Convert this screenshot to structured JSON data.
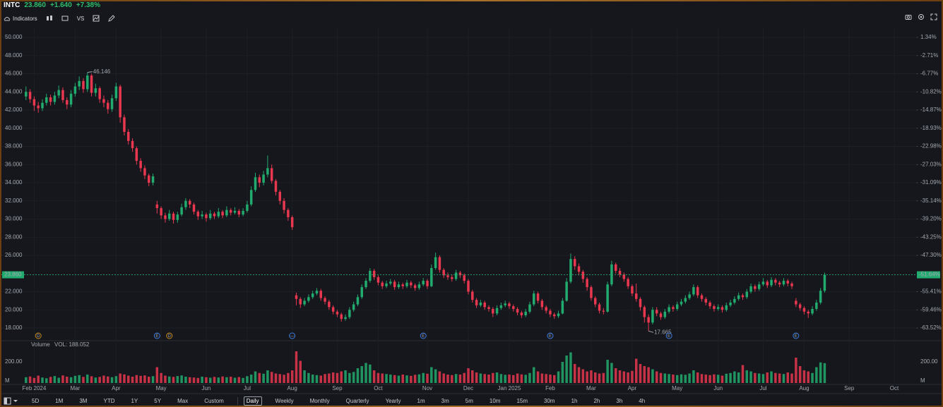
{
  "header": {
    "symbol": "INTC",
    "price": "23.860",
    "change": "+1.640",
    "change_pct": "+7.38%"
  },
  "toolbar": {
    "indicators": "Indicators",
    "compare": "VS"
  },
  "ranges": [
    "5D",
    "1M",
    "3M",
    "YTD",
    "1Y",
    "5Y",
    "Max",
    "Custom"
  ],
  "intervals": [
    "Daily",
    "Weekly",
    "Monthly",
    "Quarterly",
    "Yearly",
    "1m",
    "3m",
    "5m",
    "10m",
    "15m",
    "30m",
    "1h",
    "2h",
    "3h",
    "4h"
  ],
  "active_interval": 0,
  "chart_data": {
    "type": "candlestick",
    "up_color": "#22ab6e",
    "down_color": "#e8374f",
    "grid": true,
    "open": [
      43.5,
      44.0,
      43.2,
      42.5,
      42.2,
      42.8,
      43.4,
      42.9,
      43.6,
      44.2,
      43.1,
      42.6,
      43.8,
      44.6,
      45.2,
      44.3,
      45.8,
      43.9,
      44.4,
      43.2,
      42.8,
      42.1,
      43.3,
      44.6,
      41.2,
      39.6,
      38.6,
      37.8,
      36.4,
      35.6,
      34.8,
      34.0,
      31.6,
      31.2,
      30.4,
      30.0,
      30.6,
      29.9,
      30.5,
      31.3,
      32.0,
      31.6,
      30.8,
      30.3,
      30.5,
      30.1,
      30.6,
      30.3,
      30.8,
      30.4,
      31.0,
      30.7,
      30.9,
      30.5,
      30.9,
      31.6,
      33.2,
      34.6,
      34.0,
      34.9,
      35.6,
      34.2,
      33.0,
      32.0,
      31.0,
      30.2,
      21.6,
      21.2,
      20.6,
      21.0,
      21.4,
      21.8,
      22.1,
      21.3,
      20.9,
      20.3,
      19.8,
      19.5,
      19.0,
      19.2,
      20.0,
      20.6,
      21.4,
      22.5,
      23.2,
      24.3,
      23.6,
      23.0,
      22.6,
      22.9,
      23.1,
      22.5,
      22.8,
      22.6,
      23.0,
      22.7,
      22.4,
      22.8,
      23.2,
      22.6,
      24.6,
      25.8,
      24.4,
      23.8,
      23.6,
      23.4,
      24.1,
      23.8,
      23.2,
      22.0,
      21.1,
      20.5,
      20.8,
      20.3,
      20.1,
      19.6,
      20.2,
      20.5,
      20.7,
      20.4,
      20.1,
      19.7,
      19.4,
      19.8,
      20.6,
      21.8,
      21.0,
      20.3,
      19.9,
      19.5,
      19.3,
      19.6,
      21.0,
      23.1,
      25.6,
      24.8,
      24.2,
      23.4,
      22.5,
      21.3,
      20.6,
      19.9,
      19.8,
      22.8,
      25.0,
      24.3,
      23.9,
      23.4,
      22.6,
      21.8,
      21.2,
      20.3,
      19.2,
      18.6,
      20.0,
      19.6,
      19.2,
      19.8,
      20.3,
      20.1,
      20.6,
      20.9,
      21.3,
      21.7,
      22.5,
      21.6,
      21.2,
      20.8,
      20.4,
      20.1,
      20.3,
      20.0,
      20.5,
      20.8,
      21.2,
      21.6,
      21.4,
      22.0,
      22.6,
      22.3,
      22.8,
      23.1,
      22.7,
      23.3,
      23.0,
      22.8,
      23.2,
      22.9,
      21.0,
      20.6,
      20.2,
      19.8,
      19.6,
      20.1,
      20.8,
      22.1
    ],
    "high": [
      44.6,
      44.3,
      43.5,
      42.9,
      43.2,
      43.8,
      43.7,
      44.0,
      44.7,
      44.5,
      43.4,
      44.2,
      45.0,
      45.7,
      45.5,
      46.146,
      46.0,
      44.9,
      44.6,
      43.6,
      43.1,
      43.7,
      45.0,
      44.8,
      41.5,
      39.9,
      38.9,
      38.0,
      36.7,
      35.9,
      35.0,
      35.0,
      32.0,
      31.4,
      30.7,
      31.0,
      30.8,
      30.8,
      31.7,
      32.3,
      32.2,
      31.8,
      31.0,
      30.9,
      30.7,
      31.0,
      30.8,
      31.2,
      31.0,
      31.4,
      31.2,
      31.3,
      31.1,
      31.2,
      32.0,
      33.6,
      35.1,
      34.9,
      35.3,
      37.0,
      36.0,
      34.4,
      33.2,
      32.3,
      31.2,
      30.4,
      21.9,
      21.4,
      21.3,
      21.7,
      22.1,
      22.4,
      22.3,
      21.5,
      21.1,
      20.5,
      20.0,
      19.7,
      19.5,
      20.3,
      20.9,
      21.7,
      22.8,
      23.5,
      24.6,
      24.5,
      23.8,
      23.2,
      23.2,
      23.4,
      23.3,
      23.1,
      23.0,
      23.3,
      23.2,
      22.9,
      23.1,
      23.5,
      23.4,
      25.0,
      26.3,
      26.0,
      24.6,
      24.1,
      23.9,
      24.4,
      24.3,
      24.0,
      23.4,
      22.2,
      21.3,
      21.1,
      21.0,
      20.5,
      20.3,
      20.5,
      20.8,
      21.0,
      20.9,
      20.6,
      20.3,
      19.9,
      20.1,
      20.9,
      22.1,
      22.0,
      21.2,
      20.5,
      20.1,
      19.7,
      19.9,
      21.3,
      23.5,
      26.2,
      25.9,
      25.1,
      24.4,
      23.6,
      22.7,
      21.5,
      20.8,
      20.2,
      23.1,
      25.4,
      25.2,
      24.6,
      24.1,
      23.6,
      22.8,
      22.9,
      21.4,
      20.5,
      19.5,
      20.3,
      20.3,
      19.8,
      20.1,
      20.6,
      20.5,
      20.9,
      21.2,
      21.6,
      22.0,
      22.8,
      22.7,
      21.8,
      21.4,
      21.0,
      20.6,
      20.6,
      20.5,
      20.8,
      21.1,
      21.5,
      21.9,
      21.8,
      22.3,
      22.9,
      22.8,
      23.1,
      23.5,
      23.3,
      23.6,
      23.5,
      23.2,
      23.5,
      23.4,
      23.1,
      21.3,
      20.8,
      20.4,
      20.0,
      20.4,
      21.1,
      22.4,
      24.1
    ],
    "low": [
      43.1,
      42.8,
      41.9,
      41.7,
      41.9,
      42.5,
      42.5,
      42.6,
      43.3,
      42.8,
      42.1,
      42.3,
      43.5,
      44.2,
      43.9,
      44.0,
      43.5,
      43.5,
      42.8,
      42.3,
      41.6,
      41.8,
      43.0,
      40.6,
      39.2,
      38.2,
      37.4,
      36.0,
      35.2,
      34.4,
      33.6,
      33.7,
      30.6,
      30.0,
      29.6,
      29.8,
      29.5,
      29.6,
      30.3,
      31.0,
      31.2,
      30.5,
      29.9,
      30.0,
      29.7,
      29.9,
      30.0,
      30.1,
      30.1,
      30.2,
      30.4,
      30.5,
      30.2,
      30.3,
      30.7,
      31.4,
      33.0,
      33.5,
      33.7,
      34.6,
      33.9,
      32.6,
      31.6,
      30.6,
      29.8,
      28.8,
      20.5,
      20.2,
      20.4,
      20.8,
      21.2,
      21.6,
      21.0,
      20.6,
      20.0,
      19.5,
      19.2,
      18.7,
      18.8,
      19.0,
      19.8,
      20.4,
      21.2,
      22.3,
      23.0,
      23.3,
      22.7,
      22.3,
      22.4,
      22.7,
      22.2,
      22.3,
      22.3,
      22.4,
      22.4,
      22.1,
      22.2,
      22.6,
      22.3,
      22.5,
      24.4,
      24.1,
      23.5,
      23.3,
      23.1,
      23.2,
      23.5,
      22.9,
      21.7,
      20.8,
      20.2,
      20.3,
      20.0,
      19.8,
      19.2,
      19.4,
      20.0,
      20.3,
      20.1,
      19.8,
      19.4,
      19.1,
      19.2,
      19.6,
      20.4,
      20.7,
      20.0,
      19.6,
      19.2,
      19.0,
      19.1,
      19.5,
      20.9,
      22.9,
      24.4,
      23.8,
      23.0,
      22.1,
      21.0,
      20.3,
      19.6,
      19.5,
      19.7,
      22.6,
      24.0,
      23.6,
      23.1,
      22.3,
      21.5,
      20.9,
      19.9,
      18.6,
      17.665,
      18.4,
      19.3,
      18.9,
      19.0,
      19.6,
      19.8,
      19.9,
      20.4,
      20.7,
      21.1,
      21.5,
      21.3,
      20.9,
      20.5,
      20.1,
      19.8,
      19.9,
      19.7,
      19.8,
      20.3,
      20.6,
      21.0,
      21.1,
      21.2,
      21.8,
      22.0,
      22.1,
      22.6,
      22.4,
      22.5,
      22.7,
      22.5,
      22.6,
      22.6,
      22.3,
      20.3,
      19.9,
      19.5,
      19.1,
      19.4,
      19.9,
      20.6,
      21.9
    ],
    "close": [
      44.0,
      43.2,
      42.5,
      42.2,
      42.8,
      43.4,
      42.9,
      43.6,
      44.2,
      43.1,
      42.6,
      43.8,
      44.6,
      45.2,
      44.3,
      45.8,
      43.9,
      44.4,
      43.2,
      42.8,
      42.1,
      43.3,
      44.6,
      41.2,
      39.6,
      38.6,
      37.8,
      36.4,
      35.6,
      34.8,
      34.0,
      34.7,
      31.2,
      30.4,
      30.0,
      30.6,
      29.9,
      30.5,
      31.3,
      32.0,
      31.6,
      30.8,
      30.3,
      30.5,
      30.1,
      30.6,
      30.3,
      30.8,
      30.4,
      31.0,
      30.7,
      30.9,
      30.5,
      30.9,
      31.6,
      33.2,
      34.6,
      34.0,
      34.9,
      35.6,
      34.2,
      33.0,
      32.0,
      31.0,
      30.2,
      29.1,
      21.2,
      20.6,
      21.0,
      21.4,
      21.8,
      22.1,
      21.3,
      20.9,
      20.3,
      19.8,
      19.5,
      19.0,
      19.2,
      20.0,
      20.6,
      21.4,
      22.5,
      23.2,
      24.3,
      23.6,
      23.0,
      22.6,
      22.9,
      23.1,
      22.5,
      22.8,
      22.6,
      23.0,
      22.7,
      22.4,
      22.8,
      23.2,
      22.6,
      24.6,
      25.8,
      24.4,
      23.8,
      23.6,
      23.4,
      24.1,
      23.8,
      23.2,
      22.0,
      21.1,
      20.5,
      20.8,
      20.3,
      20.1,
      19.6,
      20.2,
      20.5,
      20.7,
      20.4,
      20.1,
      19.7,
      19.4,
      19.8,
      20.6,
      21.8,
      21.0,
      20.3,
      19.9,
      19.5,
      19.3,
      19.6,
      21.0,
      23.1,
      25.6,
      24.8,
      24.2,
      23.4,
      22.5,
      21.3,
      20.6,
      19.9,
      19.8,
      22.8,
      25.0,
      24.3,
      23.9,
      23.4,
      22.6,
      21.8,
      21.2,
      20.3,
      19.2,
      18.6,
      20.0,
      19.6,
      19.2,
      19.8,
      20.3,
      20.1,
      20.6,
      20.9,
      21.3,
      21.7,
      22.5,
      21.6,
      21.2,
      20.8,
      20.4,
      20.1,
      20.3,
      20.0,
      20.5,
      20.8,
      21.2,
      21.6,
      21.4,
      22.0,
      22.6,
      22.3,
      22.8,
      23.1,
      22.7,
      23.3,
      23.0,
      22.8,
      23.2,
      22.9,
      22.6,
      20.6,
      20.2,
      19.8,
      19.6,
      20.1,
      20.8,
      22.1,
      23.86
    ],
    "xlim": [
      -1,
      217
    ],
    "xticks": [
      {
        "value": 2,
        "label": "Feb 2024"
      },
      {
        "value": 12,
        "label": "Mar"
      },
      {
        "value": 22,
        "label": "Apr"
      },
      {
        "value": 33,
        "label": "May"
      },
      {
        "value": 44,
        "label": "Jun"
      },
      {
        "value": 54,
        "label": "Jul"
      },
      {
        "value": 65,
        "label": "Aug"
      },
      {
        "value": 76,
        "label": "Sep"
      },
      {
        "value": 86,
        "label": "Oct"
      },
      {
        "value": 98,
        "label": "Nov"
      },
      {
        "value": 108,
        "label": "Dec"
      },
      {
        "value": 118,
        "label": "Jan 2025"
      },
      {
        "value": 128,
        "label": "Feb"
      },
      {
        "value": 138,
        "label": "Mar"
      },
      {
        "value": 148,
        "label": "Apr"
      },
      {
        "value": 159,
        "label": "May"
      },
      {
        "value": 169,
        "label": "Jun"
      },
      {
        "value": 180,
        "label": "Jul"
      },
      {
        "value": 190,
        "label": "Aug"
      },
      {
        "value": 201,
        "label": "Sep"
      },
      {
        "value": 212,
        "label": "Oct"
      }
    ],
    "ylim": [
      16.68,
      51.09
    ],
    "yticks": [
      {
        "value": 50,
        "label": "50.000"
      },
      {
        "value": 48,
        "label": "48.000"
      },
      {
        "value": 46,
        "label": "46.000"
      },
      {
        "value": 44,
        "label": "44.000"
      },
      {
        "value": 42,
        "label": "42.000"
      },
      {
        "value": 40,
        "label": "40.000"
      },
      {
        "value": 38,
        "label": "38.000"
      },
      {
        "value": 36,
        "label": "36.000"
      },
      {
        "value": 34,
        "label": "34.000"
      },
      {
        "value": 32,
        "label": "32.000"
      },
      {
        "value": 30,
        "label": "30.000"
      },
      {
        "value": 28,
        "label": "28.000"
      },
      {
        "value": 26,
        "label": "26.000"
      },
      {
        "value": 22,
        "label": "22.000"
      },
      {
        "value": 20,
        "label": "20.000"
      },
      {
        "value": 18,
        "label": "18.000"
      }
    ],
    "y2lim": [
      -66.19,
      3.55
    ],
    "y2ticks": [
      {
        "value": 1.34,
        "label": "1.34%"
      },
      {
        "value": -2.71,
        "label": "-2.71%"
      },
      {
        "value": -6.77,
        "label": "-6.77%"
      },
      {
        "value": -10.82,
        "label": "-10.82%"
      },
      {
        "value": -14.87,
        "label": "-14.87%"
      },
      {
        "value": -18.93,
        "label": "-18.93%"
      },
      {
        "value": -22.98,
        "label": "-22.98%"
      },
      {
        "value": -27.03,
        "label": "-27.03%"
      },
      {
        "value": -31.09,
        "label": "-31.09%"
      },
      {
        "value": -35.14,
        "label": "-35.14%"
      },
      {
        "value": -39.2,
        "label": "-39.20%"
      },
      {
        "value": -43.25,
        "label": "-43.25%"
      },
      {
        "value": -47.3,
        "label": "-47.30%"
      },
      {
        "value": -55.41,
        "label": "-55.41%"
      },
      {
        "value": -59.46,
        "label": "-59.46%"
      },
      {
        "value": -63.52,
        "label": "-63.52%"
      }
    ],
    "last_price": {
      "value": 23.86,
      "label": "23.860"
    },
    "last_change_pct": {
      "value": -51.64,
      "label": "-51.64%"
    },
    "max_label": "46.146",
    "min_label": "17.665",
    "events": [
      {
        "x": 3,
        "label": "D",
        "color": "#c98a1d"
      },
      {
        "x": 32,
        "label": "E",
        "color": "#3d7be0"
      },
      {
        "x": 35,
        "label": "D",
        "color": "#c98a1d"
      },
      {
        "x": 65,
        "label": "—",
        "color": "#3d7be0"
      },
      {
        "x": 97,
        "label": "E",
        "color": "#3d7be0"
      },
      {
        "x": 128,
        "label": "E",
        "color": "#3d7be0"
      },
      {
        "x": 157,
        "label": "E",
        "color": "#3d7be0"
      },
      {
        "x": 188,
        "label": "E",
        "color": "#3d7be0"
      }
    ],
    "volume": {
      "title": "Volume",
      "label": "VOL: 188.052",
      "ylim": [
        0,
        387
      ],
      "yticks": [
        {
          "value": 0,
          "label": "M"
        },
        {
          "value": 200,
          "label": "200.00"
        }
      ],
      "values": [
        55,
        62,
        48,
        70,
        52,
        45,
        58,
        66,
        50,
        72,
        60,
        55,
        68,
        75,
        58,
        80,
        64,
        52,
        58,
        70,
        62,
        55,
        65,
        90,
        82,
        70,
        60,
        75,
        68,
        72,
        60,
        65,
        150,
        95,
        70,
        62,
        58,
        66,
        72,
        60,
        55,
        52,
        48,
        60,
        55,
        50,
        58,
        52,
        62,
        55,
        60,
        50,
        56,
        48,
        65,
        80,
        110,
        95,
        88,
        120,
        105,
        90,
        85,
        78,
        95,
        120,
        300,
        210,
        120,
        95,
        80,
        75,
        70,
        85,
        90,
        100,
        95,
        110,
        120,
        95,
        105,
        140,
        160,
        190,
        175,
        120,
        95,
        90,
        85,
        80,
        75,
        70,
        80,
        72,
        68,
        78,
        82,
        95,
        88,
        150,
        130,
        110,
        90,
        80,
        75,
        85,
        80,
        95,
        140,
        120,
        100,
        90,
        85,
        80,
        95,
        100,
        85,
        78,
        80,
        75,
        90,
        82,
        78,
        95,
        150,
        110,
        90,
        85,
        80,
        75,
        110,
        200,
        260,
        290,
        180,
        150,
        130,
        110,
        120,
        100,
        90,
        95,
        220,
        190,
        140,
        120,
        110,
        100,
        115,
        230,
        180,
        160,
        150,
        130,
        110,
        95,
        90,
        85,
        80,
        75,
        82,
        78,
        90,
        120,
        100,
        85,
        80,
        75,
        82,
        78,
        70,
        88,
        95,
        110,
        100,
        170,
        120,
        110,
        95,
        90,
        85,
        100,
        110,
        95,
        90,
        85,
        100,
        90,
        240,
        160,
        120,
        110,
        95,
        150,
        195,
        188.052
      ]
    }
  }
}
